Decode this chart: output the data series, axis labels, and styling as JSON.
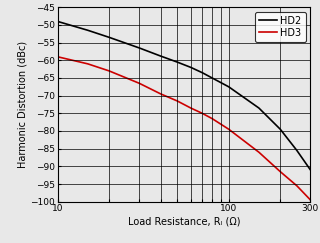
{
  "title": "",
  "xlabel": "Load Resistance, Rₗ (Ω)",
  "ylabel": "Harmonic Distortion (dBc)",
  "xlim": [
    10,
    300
  ],
  "ylim": [
    -100,
    -45
  ],
  "yticks": [
    -100,
    -95,
    -90,
    -85,
    -80,
    -75,
    -70,
    -65,
    -60,
    -55,
    -50,
    -45
  ],
  "xticks_major": [
    10,
    100
  ],
  "xticks_minor": [
    20,
    30,
    40,
    50,
    60,
    70,
    80,
    90,
    200,
    300
  ],
  "hd2_x": [
    10,
    15,
    20,
    30,
    40,
    50,
    60,
    70,
    80,
    100,
    150,
    200,
    250,
    300
  ],
  "hd2_y": [
    -49.0,
    -51.5,
    -53.5,
    -56.5,
    -58.8,
    -60.5,
    -62.0,
    -63.5,
    -65.0,
    -67.5,
    -73.5,
    -79.5,
    -85.5,
    -91.0
  ],
  "hd3_x": [
    10,
    15,
    20,
    30,
    40,
    50,
    60,
    70,
    80,
    100,
    150,
    200,
    250,
    300
  ],
  "hd3_y": [
    -59.0,
    -61.0,
    -63.0,
    -66.5,
    -69.5,
    -71.5,
    -73.5,
    -75.0,
    -76.5,
    -79.5,
    -86.0,
    -91.5,
    -95.5,
    -99.5
  ],
  "hd2_color": "#000000",
  "hd3_color": "#cc0000",
  "line_width": 1.2,
  "legend_labels": [
    "HD2",
    "HD3"
  ],
  "background_color": "#e8e8e8",
  "plot_bg_color": "#e8e8e8",
  "grid_color": "#000000",
  "tick_labelsize": 6.5,
  "xlabel_fontsize": 7,
  "ylabel_fontsize": 7,
  "legend_fontsize": 7
}
